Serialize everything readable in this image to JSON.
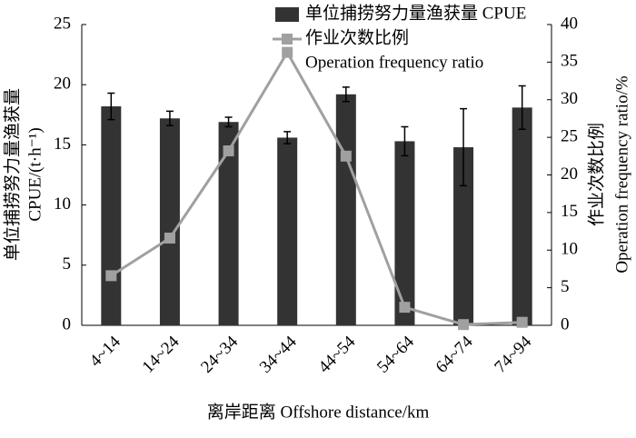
{
  "chart_data": {
    "type": "bar_line",
    "categories": [
      "4~14",
      "14~24",
      "24~34",
      "34~44",
      "44~54",
      "54~64",
      "64~74",
      "74~94"
    ],
    "xlabel": "离岸距离 Offshore distance/km",
    "ylabel": [
      "单位捕捞努力量渔获量",
      "CPUE/(t·h⁻¹)"
    ],
    "y2label": [
      "作业次数比例",
      "Operation frequency ratio/%"
    ],
    "ylim": [
      0,
      25
    ],
    "yticks": [
      0,
      5,
      10,
      15,
      20,
      25
    ],
    "y2lim": [
      0,
      40
    ],
    "y2ticks": [
      0,
      5,
      10,
      15,
      20,
      25,
      30,
      35,
      40
    ],
    "series": [
      {
        "name": [
          "单位捕捞努力量渔获量 CPUE"
        ],
        "color": "#333333",
        "type": "bar",
        "values": [
          18.2,
          17.2,
          16.9,
          15.6,
          19.2,
          15.3,
          14.8,
          18.1
        ],
        "errors": [
          1.1,
          0.6,
          0.4,
          0.5,
          0.6,
          1.2,
          3.2,
          1.8
        ]
      },
      {
        "name": [
          "作业次数比例",
          "Operation frequency ratio"
        ],
        "color": "#a0a0a0",
        "type": "line",
        "axis": "y2",
        "values": [
          6.6,
          11.6,
          23.2,
          36.3,
          22.5,
          2.4,
          0.1,
          0.4
        ]
      }
    ]
  }
}
